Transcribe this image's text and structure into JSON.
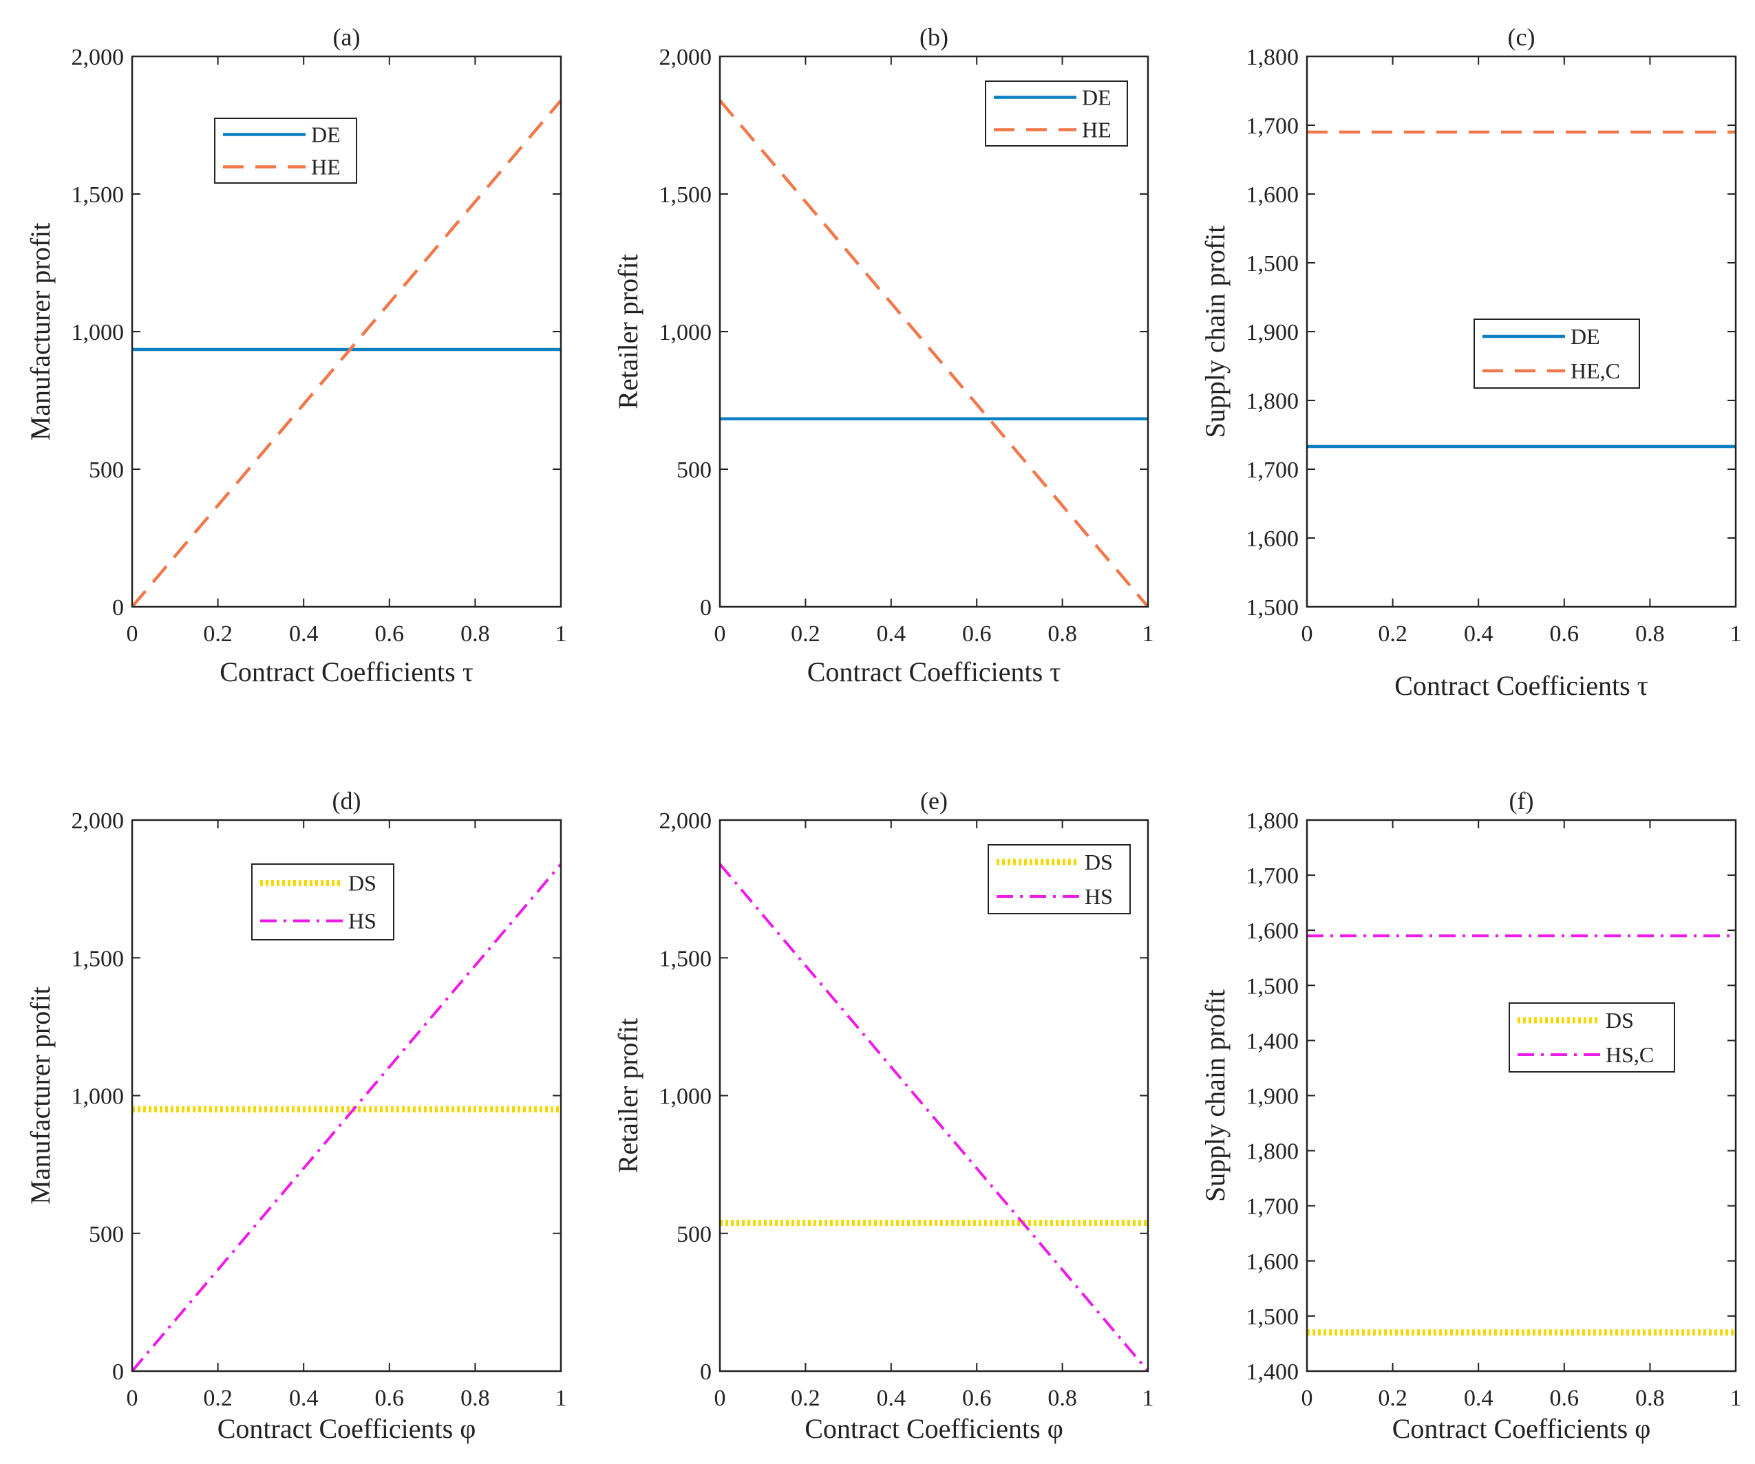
{
  "figure": {
    "description_label": "Profit comparison panels"
  },
  "colors": {
    "DE": "#0a7fc2",
    "HE": "#f0784a",
    "DS": "#f5d800",
    "HS": "#ee1be8",
    "axis": "#222222"
  },
  "chart_data": [
    {
      "id": "a",
      "type": "line",
      "title": "(a)",
      "xlabel": "Contract Coefficients τ",
      "ylabel": "Manufacturer profit",
      "xlim": [
        0,
        1
      ],
      "ylim": [
        0,
        2000
      ],
      "x_ticks": [
        0,
        0.2,
        0.4,
        0.6,
        0.8,
        1
      ],
      "x_tick_labels": [
        "0",
        "0.2",
        "0.4",
        "0.6",
        "0.8",
        "1"
      ],
      "y_ticks": [
        0,
        500,
        1000,
        1500,
        2000
      ],
      "y_tick_labels": [
        "0",
        "500",
        "1,000",
        "1,500",
        "2,000"
      ],
      "legend_position": "upper-center",
      "series": [
        {
          "name": "DE",
          "style": "solid",
          "color_key": "DE",
          "x": [
            0,
            1
          ],
          "y": [
            935,
            935
          ]
        },
        {
          "name": "HE",
          "style": "dashed",
          "color_key": "HE",
          "x": [
            0,
            1
          ],
          "y": [
            0,
            1840
          ]
        }
      ]
    },
    {
      "id": "b",
      "type": "line",
      "title": "(b)",
      "xlabel": "Contract Coefficients τ",
      "ylabel": "Retailer profit",
      "xlim": [
        0,
        1
      ],
      "ylim": [
        0,
        2000
      ],
      "x_ticks": [
        0,
        0.2,
        0.4,
        0.6,
        0.8,
        1
      ],
      "x_tick_labels": [
        "0",
        "0.2",
        "0.4",
        "0.6",
        "0.8",
        "1"
      ],
      "y_ticks": [
        0,
        500,
        1000,
        1500,
        2000
      ],
      "y_tick_labels": [
        "0",
        "500",
        "1,000",
        "1,500",
        "2,000"
      ],
      "legend_position": "top-right",
      "series": [
        {
          "name": "DE",
          "style": "solid",
          "color_key": "DE",
          "x": [
            0,
            1
          ],
          "y": [
            683,
            683
          ]
        },
        {
          "name": "HE",
          "style": "dashed",
          "color_key": "HE",
          "x": [
            0,
            1
          ],
          "y": [
            1840,
            0
          ]
        }
      ]
    },
    {
      "id": "c",
      "type": "line",
      "title": "(c)",
      "xlabel": "Contract Coefficients τ",
      "ylabel": "Supply chain profit",
      "xlim": [
        0,
        1
      ],
      "ylim": [
        0,
        8
      ],
      "x_ticks": [
        0,
        0.2,
        0.4,
        0.6,
        0.8,
        1
      ],
      "x_tick_labels": [
        "0",
        "0.2",
        "0.4",
        "0.6",
        "0.8",
        "1"
      ],
      "y_ticks": [
        0,
        1,
        2,
        3,
        4,
        5,
        6,
        7,
        8
      ],
      "y_tick_labels": [
        "1,500",
        "1,600",
        "1,700",
        "1,800",
        "1,900",
        "1,500",
        "1,600",
        "1,700",
        "1,800"
      ],
      "legend_position": "center-right",
      "series": [
        {
          "name": "DE",
          "style": "solid",
          "color_key": "DE",
          "x": [
            0,
            1
          ],
          "y": [
            2.33,
            2.33
          ]
        },
        {
          "name": "HE,C",
          "style": "dashed",
          "color_key": "HE",
          "x": [
            0,
            1
          ],
          "y": [
            6.9,
            6.9
          ]
        }
      ]
    },
    {
      "id": "d",
      "type": "line",
      "title": "(d)",
      "xlabel": "Contract Coefficients φ",
      "ylabel": "Manufacturer profit",
      "xlim": [
        0,
        1
      ],
      "ylim": [
        0,
        2000
      ],
      "x_ticks": [
        0,
        0.2,
        0.4,
        0.6,
        0.8,
        1
      ],
      "x_tick_labels": [
        "0",
        "0.2",
        "0.4",
        "0.6",
        "0.8",
        "1"
      ],
      "y_ticks": [
        0,
        500,
        1000,
        1500,
        2000
      ],
      "y_tick_labels": [
        "0",
        "500",
        "1,000",
        "1,500",
        "2,000"
      ],
      "legend_position": "upper-center",
      "series": [
        {
          "name": "DS",
          "style": "dotted",
          "color_key": "DS",
          "x": [
            0,
            1
          ],
          "y": [
            950,
            950
          ]
        },
        {
          "name": "HS",
          "style": "dashdot",
          "color_key": "HS",
          "x": [
            0,
            1
          ],
          "y": [
            0,
            1840
          ]
        }
      ]
    },
    {
      "id": "e",
      "type": "line",
      "title": "(e)",
      "xlabel": "Contract Coefficients φ",
      "ylabel": "Retailer profit",
      "xlim": [
        0,
        1
      ],
      "ylim": [
        0,
        2000
      ],
      "x_ticks": [
        0,
        0.2,
        0.4,
        0.6,
        0.8,
        1
      ],
      "x_tick_labels": [
        "0",
        "0.2",
        "0.4",
        "0.6",
        "0.8",
        "1"
      ],
      "y_ticks": [
        0,
        500,
        1000,
        1500,
        2000
      ],
      "y_tick_labels": [
        "0",
        "500",
        "1,000",
        "1,500",
        "2,000"
      ],
      "legend_position": "top-right",
      "series": [
        {
          "name": "DS",
          "style": "dotted",
          "color_key": "DS",
          "x": [
            0,
            1
          ],
          "y": [
            538,
            538
          ]
        },
        {
          "name": "HS",
          "style": "dashdot",
          "color_key": "HS",
          "x": [
            0,
            1
          ],
          "y": [
            1840,
            0
          ]
        }
      ]
    },
    {
      "id": "f",
      "type": "line",
      "title": "(f)",
      "xlabel": "Contract Coefficients φ",
      "ylabel": "Supply chain profit",
      "xlim": [
        0,
        1
      ],
      "ylim": [
        0,
        10
      ],
      "x_ticks": [
        0,
        0.2,
        0.4,
        0.6,
        0.8,
        1
      ],
      "x_tick_labels": [
        "0",
        "0.2",
        "0.4",
        "0.6",
        "0.8",
        "1"
      ],
      "y_ticks": [
        0,
        1,
        2,
        3,
        4,
        5,
        6,
        7,
        8,
        9,
        10
      ],
      "y_tick_labels": [
        "1,400",
        "1,500",
        "1,600",
        "1,700",
        "1,800",
        "1,900",
        "1,400",
        "1,500",
        "1,600",
        "1,700",
        "1,800"
      ],
      "legend_position": "center-right",
      "series": [
        {
          "name": "DS",
          "style": "dotted",
          "color_key": "DS",
          "x": [
            0,
            1
          ],
          "y": [
            0.7,
            0.7
          ]
        },
        {
          "name": "HS,C",
          "style": "dashdot",
          "color_key": "HS",
          "x": [
            0,
            1
          ],
          "y": [
            7.9,
            7.9
          ]
        }
      ]
    }
  ]
}
